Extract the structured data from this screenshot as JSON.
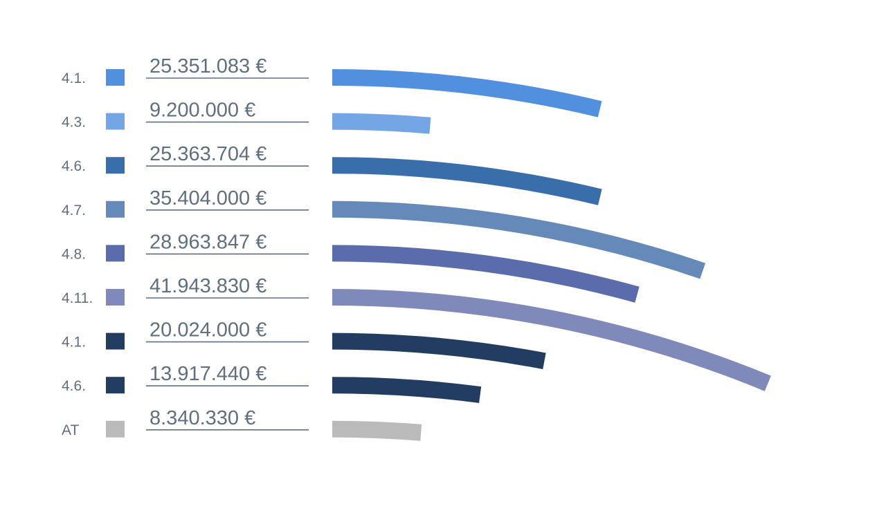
{
  "chart_data": {
    "type": "bar",
    "title": "",
    "xlabel": "",
    "ylabel": "",
    "categories": [
      "4.1.",
      "4.3.",
      "4.6.",
      "4.7.",
      "4.8.",
      "4.11.",
      "4.1.",
      "4.6.",
      "AT"
    ],
    "values": [
      25351083,
      9200000,
      25363704,
      35404000,
      28963847,
      41943830,
      20024000,
      13917440,
      8340330
    ],
    "value_labels": [
      "25.351.083 €",
      "9.200.000 €",
      "25.363.704 €",
      "35.404.000 €",
      "28.963.847 €",
      "41.943.830 €",
      "20.024.000 €",
      "13.917.440 €",
      "8.340.330 €"
    ],
    "colors": [
      "#5090df",
      "#74a6e6",
      "#3a6eab",
      "#6589b8",
      "#5b6cac",
      "#7f89ba",
      "#233c61",
      "#233c61",
      "#bababa"
    ],
    "unit": "€"
  }
}
